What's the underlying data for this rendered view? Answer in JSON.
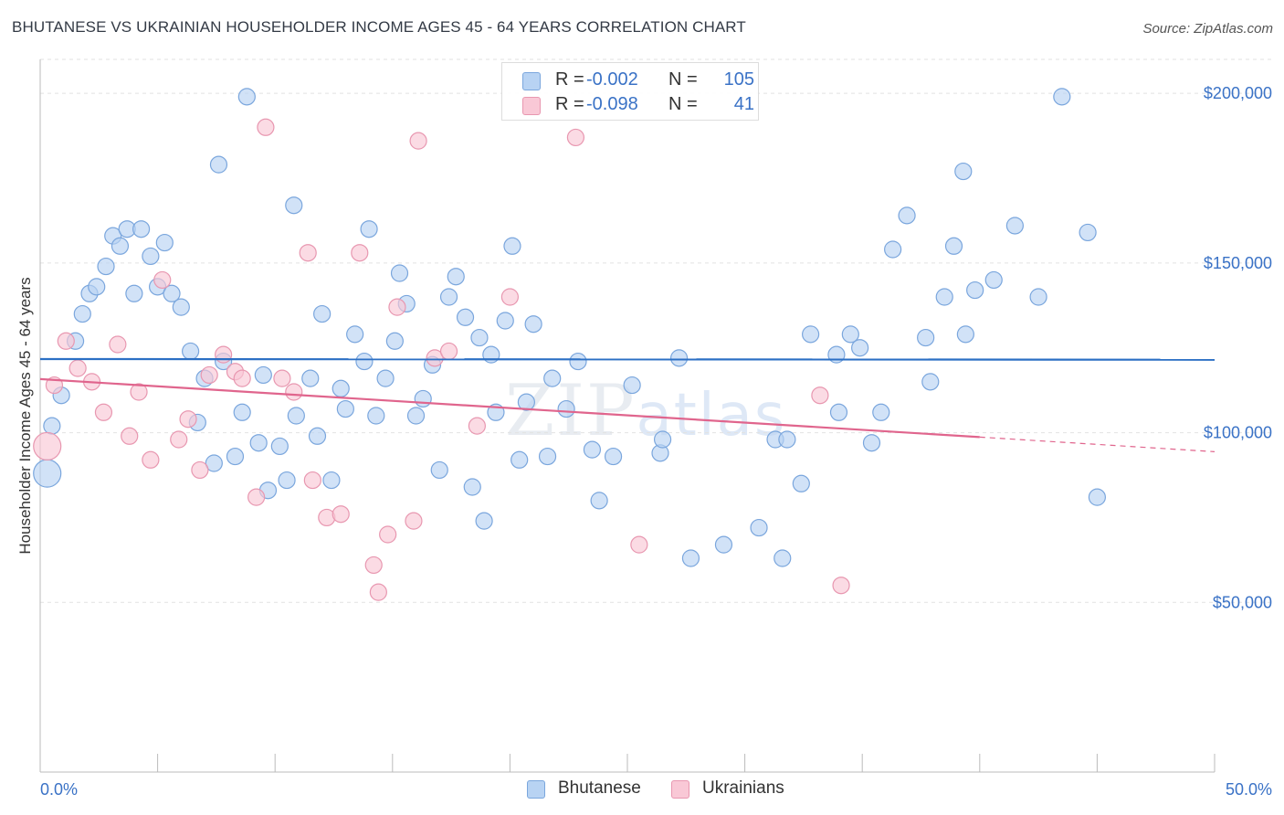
{
  "title": "BHUTANESE VS UKRAINIAN HOUSEHOLDER INCOME AGES 45 - 64 YEARS CORRELATION CHART",
  "source": "Source: ZipAtlas.com",
  "watermark": {
    "zip": "ZIP",
    "atlas": "atlas"
  },
  "legend": {
    "rows": [
      {
        "r_label": "R =",
        "r_value": "-0.002",
        "n_label": "N =",
        "n_value": "105",
        "color": "#b8d3f3",
        "border": "#7aa6dd"
      },
      {
        "r_label": "R =",
        "r_value": "-0.098",
        "n_label": "N =",
        "n_value": "41",
        "color": "#f9c8d6",
        "border": "#e897b0"
      }
    ]
  },
  "bottom_legend": [
    {
      "label": "Bhutanese",
      "color": "#b8d3f3",
      "border": "#7aa6dd"
    },
    {
      "label": "Ukrainians",
      "color": "#f9c8d6",
      "border": "#e897b0"
    }
  ],
  "chart_data": {
    "type": "scatter",
    "title": "BHUTANESE VS UKRAINIAN HOUSEHOLDER INCOME AGES 45 - 64 YEARS CORRELATION CHART",
    "xlabel": "",
    "ylabel": "Householder Income Ages 45 - 64 years",
    "xlim": [
      0,
      50
    ],
    "ylim": [
      0,
      210000
    ],
    "x_tick_labels": [
      "0.0%",
      "50.0%"
    ],
    "y_ticks": [
      50000,
      100000,
      150000,
      200000
    ],
    "y_tick_labels": [
      "$50,000",
      "$100,000",
      "$150,000",
      "$200,000"
    ],
    "grid": true,
    "legend_position": "top-center",
    "series": [
      {
        "name": "Bhutanese",
        "color": "#b8d3f3",
        "stroke": "#7aa6dd",
        "trend": {
          "x": [
            0,
            50
          ],
          "y": [
            121700,
            121500
          ],
          "color": "#2b6fc4"
        },
        "points": [
          [
            0.3,
            88000
          ],
          [
            0.5,
            102000
          ],
          [
            0.9,
            111000
          ],
          [
            1.5,
            127000
          ],
          [
            1.8,
            135000
          ],
          [
            2.1,
            141000
          ],
          [
            2.4,
            143000
          ],
          [
            2.8,
            149000
          ],
          [
            3.1,
            158000
          ],
          [
            3.4,
            155000
          ],
          [
            3.7,
            160000
          ],
          [
            4.0,
            141000
          ],
          [
            4.3,
            160000
          ],
          [
            4.7,
            152000
          ],
          [
            5.0,
            143000
          ],
          [
            5.3,
            156000
          ],
          [
            5.6,
            141000
          ],
          [
            6.0,
            137000
          ],
          [
            6.4,
            124000
          ],
          [
            6.7,
            103000
          ],
          [
            7.0,
            116000
          ],
          [
            7.4,
            91000
          ],
          [
            7.6,
            179000
          ],
          [
            7.8,
            121000
          ],
          [
            8.3,
            93000
          ],
          [
            8.6,
            106000
          ],
          [
            8.8,
            199000
          ],
          [
            9.3,
            97000
          ],
          [
            9.5,
            117000
          ],
          [
            9.7,
            83000
          ],
          [
            10.2,
            96000
          ],
          [
            10.5,
            86000
          ],
          [
            10.8,
            167000
          ],
          [
            10.9,
            105000
          ],
          [
            11.5,
            116000
          ],
          [
            11.8,
            99000
          ],
          [
            12.0,
            135000
          ],
          [
            12.4,
            86000
          ],
          [
            12.8,
            113000
          ],
          [
            13.0,
            107000
          ],
          [
            13.4,
            129000
          ],
          [
            13.8,
            121000
          ],
          [
            14.0,
            160000
          ],
          [
            14.3,
            105000
          ],
          [
            14.7,
            116000
          ],
          [
            15.1,
            127000
          ],
          [
            15.3,
            147000
          ],
          [
            15.6,
            138000
          ],
          [
            16.0,
            105000
          ],
          [
            16.3,
            110000
          ],
          [
            16.7,
            120000
          ],
          [
            17.0,
            89000
          ],
          [
            17.4,
            140000
          ],
          [
            17.7,
            146000
          ],
          [
            18.1,
            134000
          ],
          [
            18.4,
            84000
          ],
          [
            18.7,
            128000
          ],
          [
            18.9,
            74000
          ],
          [
            19.2,
            123000
          ],
          [
            19.4,
            106000
          ],
          [
            19.8,
            133000
          ],
          [
            20.1,
            155000
          ],
          [
            20.4,
            92000
          ],
          [
            20.7,
            109000
          ],
          [
            21.0,
            132000
          ],
          [
            21.6,
            93000
          ],
          [
            21.8,
            116000
          ],
          [
            22.4,
            107000
          ],
          [
            22.9,
            121000
          ],
          [
            23.5,
            95000
          ],
          [
            23.8,
            80000
          ],
          [
            24.4,
            93000
          ],
          [
            25.2,
            114000
          ],
          [
            26.4,
            94000
          ],
          [
            26.5,
            98000
          ],
          [
            27.2,
            122000
          ],
          [
            27.7,
            63000
          ],
          [
            29.1,
            67000
          ],
          [
            30.6,
            72000
          ],
          [
            31.3,
            98000
          ],
          [
            31.6,
            63000
          ],
          [
            31.8,
            98000
          ],
          [
            32.4,
            85000
          ],
          [
            32.8,
            129000
          ],
          [
            33.9,
            123000
          ],
          [
            34.0,
            106000
          ],
          [
            34.5,
            129000
          ],
          [
            34.9,
            125000
          ],
          [
            35.4,
            97000
          ],
          [
            35.8,
            106000
          ],
          [
            36.3,
            154000
          ],
          [
            36.9,
            164000
          ],
          [
            37.7,
            128000
          ],
          [
            37.9,
            115000
          ],
          [
            38.5,
            140000
          ],
          [
            38.9,
            155000
          ],
          [
            39.3,
            177000
          ],
          [
            39.4,
            129000
          ],
          [
            39.8,
            142000
          ],
          [
            40.6,
            145000
          ],
          [
            41.5,
            161000
          ],
          [
            42.5,
            140000
          ],
          [
            43.5,
            199000
          ],
          [
            44.6,
            159000
          ],
          [
            45.0,
            81000
          ]
        ]
      },
      {
        "name": "Ukrainians",
        "color": "#f9c8d6",
        "stroke": "#e897b0",
        "trend": {
          "x": [
            0,
            40
          ],
          "y": [
            115800,
            98700
          ],
          "dashed_to": [
            50,
            94400
          ],
          "color": "#e0658d"
        },
        "points": [
          [
            0.3,
            96000
          ],
          [
            0.6,
            114000
          ],
          [
            1.1,
            127000
          ],
          [
            1.6,
            119000
          ],
          [
            2.2,
            115000
          ],
          [
            2.7,
            106000
          ],
          [
            3.3,
            126000
          ],
          [
            3.8,
            99000
          ],
          [
            4.2,
            112000
          ],
          [
            4.7,
            92000
          ],
          [
            5.2,
            145000
          ],
          [
            5.9,
            98000
          ],
          [
            6.3,
            104000
          ],
          [
            6.8,
            89000
          ],
          [
            7.2,
            117000
          ],
          [
            7.8,
            123000
          ],
          [
            8.3,
            118000
          ],
          [
            8.6,
            116000
          ],
          [
            9.2,
            81000
          ],
          [
            9.6,
            190000
          ],
          [
            10.3,
            116000
          ],
          [
            10.8,
            112000
          ],
          [
            11.4,
            153000
          ],
          [
            11.6,
            86000
          ],
          [
            12.2,
            75000
          ],
          [
            12.8,
            76000
          ],
          [
            13.6,
            153000
          ],
          [
            14.2,
            61000
          ],
          [
            14.4,
            53000
          ],
          [
            14.8,
            70000
          ],
          [
            15.2,
            137000
          ],
          [
            15.9,
            74000
          ],
          [
            16.1,
            186000
          ],
          [
            16.8,
            122000
          ],
          [
            17.4,
            124000
          ],
          [
            18.6,
            102000
          ],
          [
            20.0,
            140000
          ],
          [
            22.8,
            187000
          ],
          [
            25.5,
            67000
          ],
          [
            33.2,
            111000
          ],
          [
            34.1,
            55000
          ]
        ]
      }
    ]
  }
}
